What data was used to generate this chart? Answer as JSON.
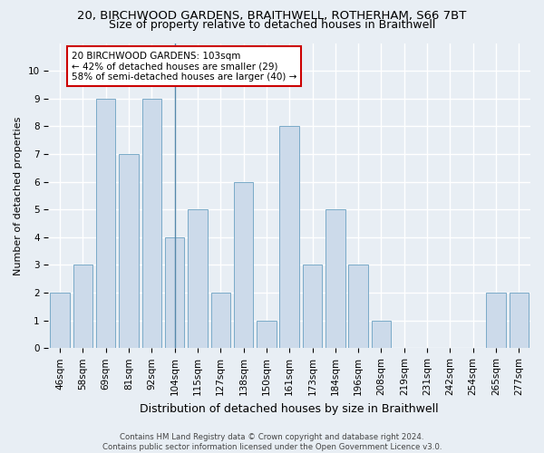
{
  "title": "20, BIRCHWOOD GARDENS, BRAITHWELL, ROTHERHAM, S66 7BT",
  "subtitle": "Size of property relative to detached houses in Braithwell",
  "xlabel": "Distribution of detached houses by size in Braithwell",
  "ylabel": "Number of detached properties",
  "categories": [
    "46sqm",
    "58sqm",
    "69sqm",
    "81sqm",
    "92sqm",
    "104sqm",
    "115sqm",
    "127sqm",
    "138sqm",
    "150sqm",
    "161sqm",
    "173sqm",
    "184sqm",
    "196sqm",
    "208sqm",
    "219sqm",
    "231sqm",
    "242sqm",
    "254sqm",
    "265sqm",
    "277sqm"
  ],
  "values": [
    2,
    3,
    9,
    7,
    9,
    4,
    5,
    2,
    6,
    1,
    8,
    3,
    5,
    3,
    1,
    0,
    0,
    0,
    0,
    2,
    2
  ],
  "bar_color": "#ccdaea",
  "bar_edge_color": "#7aaac8",
  "highlight_index": 5,
  "annotation_text": "20 BIRCHWOOD GARDENS: 103sqm\n← 42% of detached houses are smaller (29)\n58% of semi-detached houses are larger (40) →",
  "annotation_box_color": "#ffffff",
  "annotation_box_edge": "#cc0000",
  "ylim": [
    0,
    11
  ],
  "yticks": [
    0,
    1,
    2,
    3,
    4,
    5,
    6,
    7,
    8,
    9,
    10,
    11
  ],
  "footer": "Contains HM Land Registry data © Crown copyright and database right 2024.\nContains public sector information licensed under the Open Government Licence v3.0.",
  "bg_color": "#e8eef4",
  "grid_color": "#ffffff",
  "title_fontsize": 9.5,
  "subtitle_fontsize": 9,
  "ylabel_fontsize": 8,
  "xlabel_fontsize": 9,
  "tick_fontsize": 7.5,
  "footer_fontsize": 6.2
}
